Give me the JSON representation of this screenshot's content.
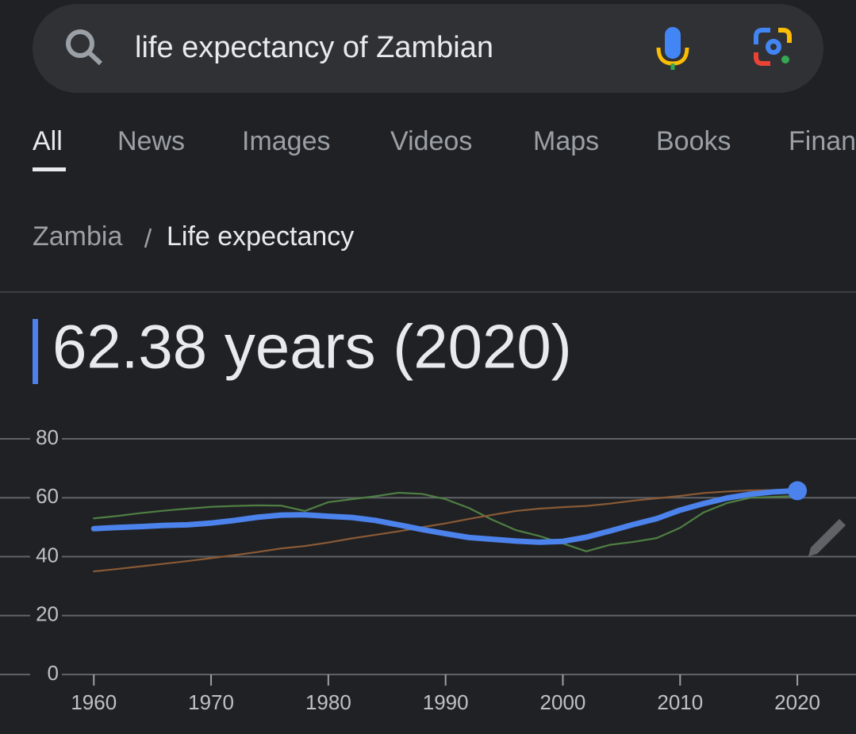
{
  "search": {
    "query": "life expectancy of Zambian"
  },
  "tabs": [
    "All",
    "News",
    "Images",
    "Videos",
    "Maps",
    "Books",
    "Finance"
  ],
  "breadcrumb": [
    "Zambia",
    "Life expectancy"
  ],
  "headline": "62.38 years (2020)",
  "chart_data": {
    "type": "line",
    "x": [
      1960,
      1962,
      1964,
      1966,
      1968,
      1970,
      1972,
      1974,
      1976,
      1978,
      1980,
      1982,
      1984,
      1986,
      1988,
      1990,
      1992,
      1994,
      1996,
      1998,
      2000,
      2002,
      2004,
      2006,
      2008,
      2010,
      2012,
      2014,
      2016,
      2018,
      2020
    ],
    "series": [
      {
        "color": "#4f7f43",
        "values": [
          53,
          53.8,
          54.8,
          55.6,
          56.3,
          56.9,
          57.2,
          57.4,
          57.3,
          55.5,
          58.5,
          59.5,
          60.5,
          61.7,
          61.3,
          59.5,
          56.5,
          52.5,
          49,
          47,
          44.5,
          41.8,
          44,
          45,
          46.3,
          49.8,
          55,
          58.2,
          60,
          60.3,
          60.6
        ]
      },
      {
        "color": "#8a5a35",
        "values": [
          35,
          35.8,
          36.7,
          37.6,
          38.5,
          39.5,
          40.5,
          41.6,
          42.8,
          43.6,
          44.8,
          46.2,
          47.4,
          48.6,
          50,
          51.3,
          52.8,
          54.2,
          55.5,
          56.3,
          56.8,
          57.2,
          58,
          59,
          59.8,
          60.6,
          61.6,
          62.1,
          62.5,
          62.6,
          62.8
        ]
      },
      {
        "color": "#4c82eb",
        "values": [
          49.5,
          49.9,
          50.2,
          50.6,
          50.8,
          51.4,
          52.3,
          53.4,
          54.1,
          54.2,
          53.7,
          53.3,
          52.3,
          50.8,
          49.2,
          47.8,
          46.5,
          45.9,
          45.3,
          44.9,
          45.2,
          46.6,
          48.7,
          50.9,
          52.9,
          55.8,
          58,
          59.9,
          61.2,
          62,
          62.38
        ]
      }
    ],
    "xlim": [
      1952,
      2025
    ],
    "xticks": [
      1960,
      1970,
      1980,
      1990,
      2000,
      2010,
      2020
    ],
    "ylim": [
      0,
      80
    ],
    "yticks": [
      0,
      20,
      40,
      60,
      80
    ],
    "grid": true
  }
}
